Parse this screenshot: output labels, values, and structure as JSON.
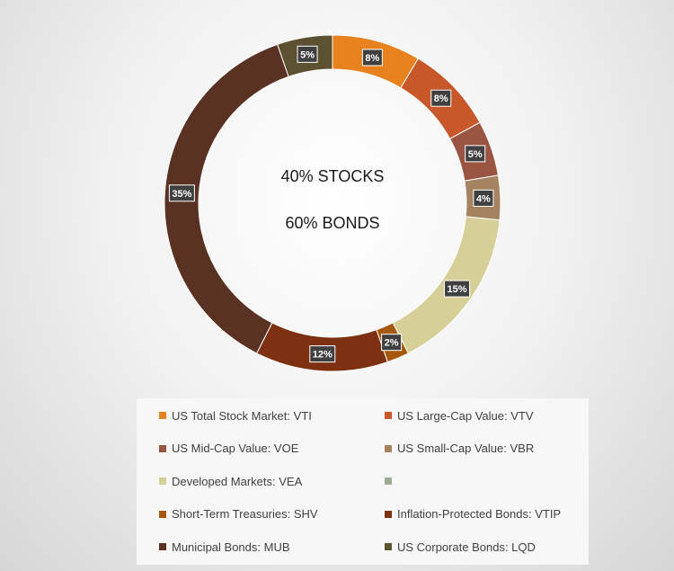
{
  "center_text": {
    "line1": "40%  STOCKS",
    "line2": "60%  BONDS"
  },
  "chart_data": {
    "type": "pie",
    "style": "doughnut",
    "legend_position": "bottom",
    "slices": [
      {
        "label": "US Total Stock Market: VTI",
        "value": 8,
        "display": "8%",
        "color": "#E8821E"
      },
      {
        "label": "US Large-Cap Value: VTV",
        "value": 8,
        "display": "8%",
        "color": "#C8582A"
      },
      {
        "label": "US Mid-Cap Value: VOE",
        "value": 5,
        "display": "5%",
        "color": "#9A5442"
      },
      {
        "label": "US Small-Cap Value: VBR",
        "value": 4,
        "display": "4%",
        "color": "#A68360"
      },
      {
        "label": "Developed Markets: VEA",
        "value": 15,
        "display": "15%",
        "color": "#D6CF98"
      },
      {
        "label": "",
        "value": 0,
        "display": "",
        "color": "#9EAA92"
      },
      {
        "label": "Short-Term Treasuries: SHV",
        "value": 2,
        "display": "2%",
        "color": "#A8580C"
      },
      {
        "label": "Inflation-Protected Bonds: VTIP",
        "value": 12,
        "display": "12%",
        "color": "#7E3112"
      },
      {
        "label": "Municipal Bonds: MUB",
        "value": 35,
        "display": "35%",
        "color": "#5A3224"
      },
      {
        "label": "US Corporate Bonds: LQD",
        "value": 5,
        "display": "5%",
        "color": "#5C5232"
      }
    ]
  }
}
